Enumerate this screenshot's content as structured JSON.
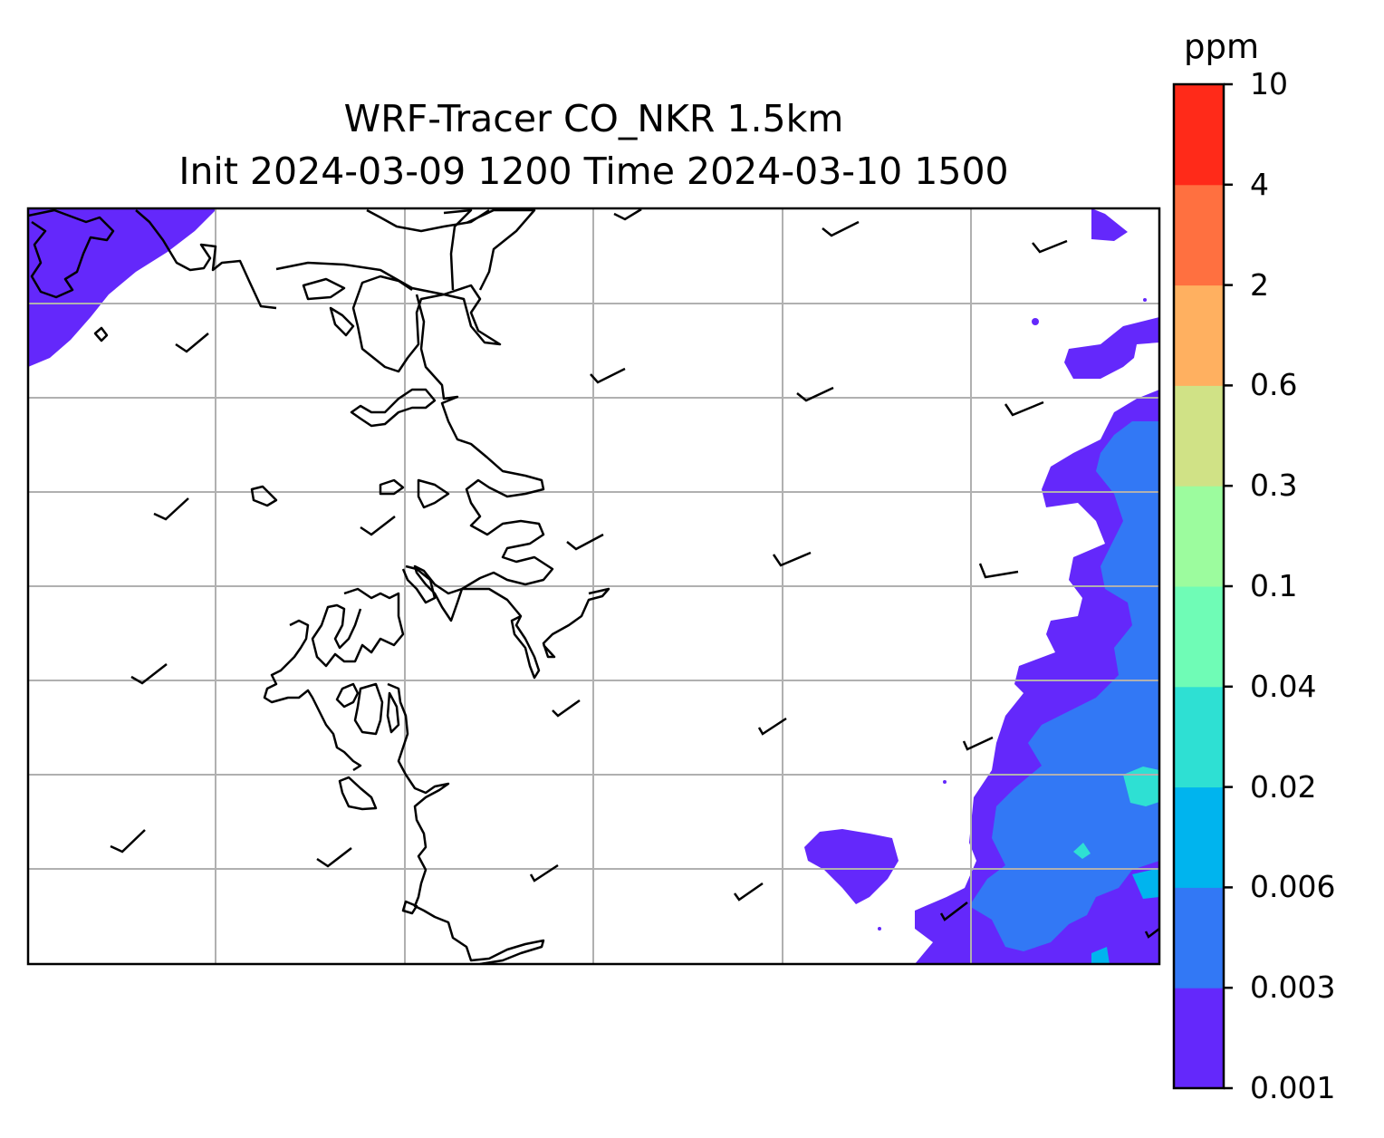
{
  "title_line1": "WRF-Tracer CO_NKR 1.5km",
  "title_line2": "Init 2024-03-09 1200 Time 2024-03-10 1500",
  "colorbar": {
    "unit": "ppm",
    "levels": [
      "0.001",
      "0.003",
      "0.006",
      "0.02",
      "0.04",
      "0.1",
      "0.3",
      "0.6",
      "2",
      "4",
      "10"
    ],
    "colors": [
      "#6428fb",
      "#3278f5",
      "#00b4ee",
      "#2ee0d3",
      "#6ffcb6",
      "#9cfc9e",
      "#d0e286",
      "#ffb060",
      "#ff7040",
      "#ff2a19"
    ]
  },
  "map": {
    "field": "CO tracer concentration",
    "gridlines": true,
    "wind_barbs": true,
    "coastlines": true
  }
}
